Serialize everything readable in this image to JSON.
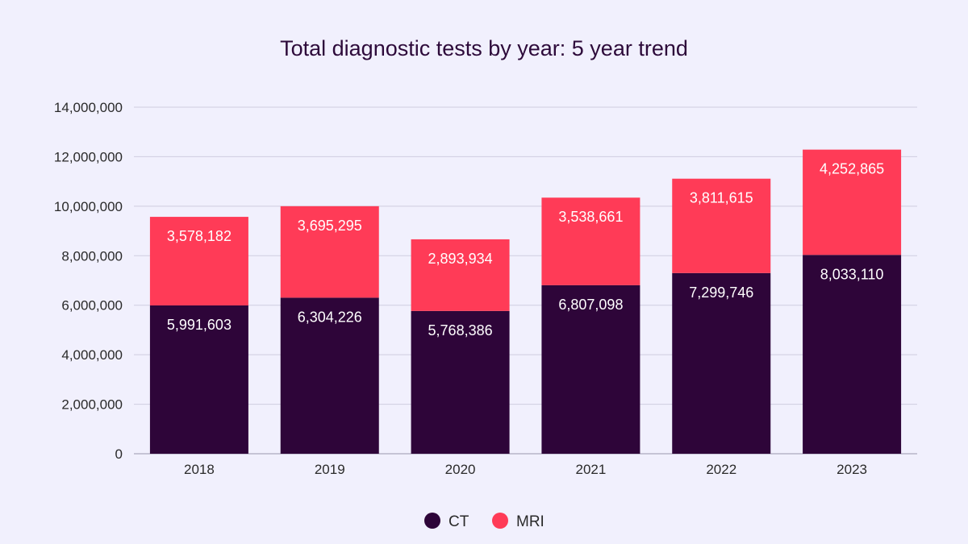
{
  "chart_data": {
    "type": "bar",
    "stacked": true,
    "title": "Total diagnostic tests by year: 5 year trend",
    "categories": [
      "2018",
      "2019",
      "2020",
      "2021",
      "2022",
      "2023"
    ],
    "series": [
      {
        "name": "CT",
        "color": "#2e0539",
        "values": [
          5991603,
          6304226,
          5768386,
          6807098,
          7299746,
          8033110
        ],
        "labels": [
          "5,991,603",
          "6,304,226",
          "5,768,386",
          "6,807,098",
          "7,299,746",
          "8,033,110"
        ]
      },
      {
        "name": "MRI",
        "color": "#ff3b57",
        "values": [
          3578182,
          3695295,
          2893934,
          3538661,
          3811615,
          4252865
        ],
        "labels": [
          "3,578,182",
          "3,695,295",
          "2,893,934",
          "3,538,661",
          "3,811,615",
          "4,252,865"
        ]
      }
    ],
    "ylim": [
      0,
      14000000
    ],
    "yticks": [
      0,
      2000000,
      4000000,
      6000000,
      8000000,
      10000000,
      12000000,
      14000000
    ],
    "ytick_labels": [
      "0",
      "2,000,000",
      "4,000,000",
      "6,000,000",
      "8,000,000",
      "10,000,000",
      "12,000,000",
      "14,000,000"
    ],
    "grid": true,
    "legend_position": "bottom-center"
  }
}
